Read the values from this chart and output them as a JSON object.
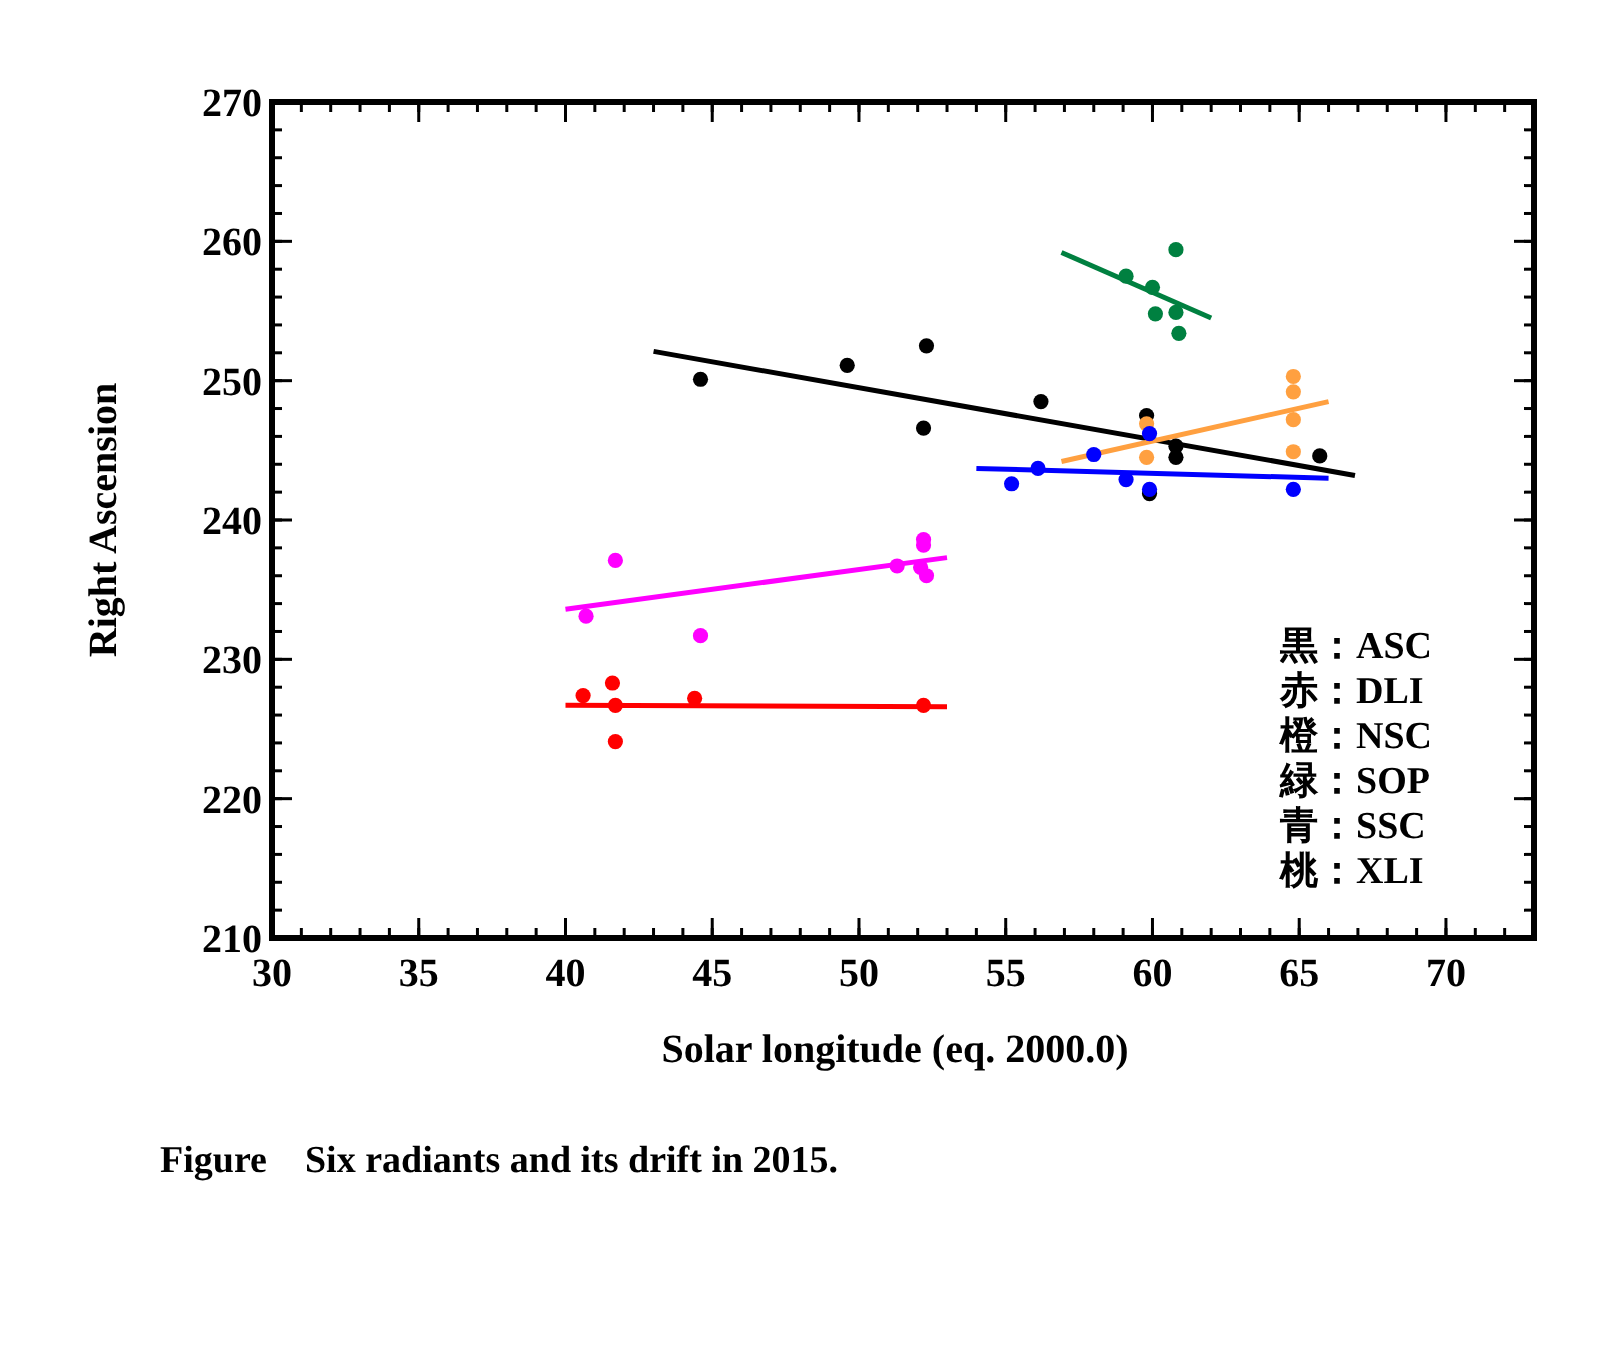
{
  "chart_data": {
    "type": "scatter",
    "title": "Figure    Six radiants and its drift in 2015.",
    "xlabel": "Solar longitude (eq. 2000.0)",
    "ylabel": "Right Ascension",
    "xlim": [
      30,
      73
    ],
    "xticks": [
      30,
      35,
      40,
      45,
      50,
      55,
      60,
      65,
      70
    ],
    "ylim": [
      210,
      270
    ],
    "yticks": [
      210,
      220,
      230,
      240,
      250,
      260,
      270
    ],
    "grid": false,
    "annotations": [
      "黒：ASC",
      "赤：DLI",
      "橙：NSC",
      "緑：SOP",
      "青：SSC",
      "桃：XLI"
    ],
    "series": [
      {
        "marker": "circle",
        "color": "#000000",
        "x": [
          44.6,
          49.6,
          52.3,
          52.2,
          56.2,
          59.8,
          59.9,
          60.8,
          60.8,
          65.7
        ],
        "values": [
          250.1,
          251.1,
          252.5,
          246.6,
          248.5,
          247.5,
          241.9,
          245.3,
          244.5,
          244.6
        ]
      },
      {
        "type": "line",
        "color": "#000000",
        "x": [
          43.0,
          66.9
        ],
        "values": [
          252.1,
          243.2
        ]
      },
      {
        "marker": "circle",
        "color": "#ff0000",
        "x": [
          40.6,
          41.6,
          41.7,
          41.7,
          44.4,
          52.2
        ],
        "values": [
          227.4,
          228.3,
          226.7,
          224.1,
          227.2,
          226.7
        ]
      },
      {
        "type": "line",
        "color": "#ff0000",
        "x": [
          40.0,
          53.0
        ],
        "values": [
          226.7,
          226.6
        ]
      },
      {
        "marker": "circle",
        "color": "#ffa040",
        "x": [
          64.8,
          64.8,
          64.8,
          64.8,
          59.8,
          59.8
        ],
        "values": [
          250.3,
          249.2,
          247.2,
          244.9,
          246.9,
          244.5
        ]
      },
      {
        "type": "line",
        "color": "#ffa040",
        "x": [
          56.9,
          66.0
        ],
        "values": [
          244.2,
          248.5
        ]
      },
      {
        "marker": "circle",
        "color": "#008040",
        "x": [
          60.8,
          59.1,
          60.0,
          60.1,
          60.8,
          60.9
        ],
        "values": [
          259.4,
          257.5,
          256.7,
          254.8,
          254.9,
          253.4
        ]
      },
      {
        "type": "line",
        "color": "#008040",
        "x": [
          56.9,
          62.0
        ],
        "values": [
          259.2,
          254.5
        ]
      },
      {
        "marker": "circle",
        "color": "#0000ff",
        "x": [
          55.2,
          56.1,
          58.0,
          59.1,
          59.9,
          59.9,
          64.8
        ],
        "values": [
          242.6,
          243.7,
          244.7,
          242.9,
          246.2,
          242.2,
          242.2
        ]
      },
      {
        "type": "line",
        "color": "#0000ff",
        "x": [
          54.0,
          66.0
        ],
        "values": [
          243.7,
          243.0
        ]
      },
      {
        "marker": "circle",
        "color": "#ff00ff",
        "x": [
          41.7,
          40.7,
          44.6,
          52.2,
          52.2,
          51.3,
          52.1,
          52.3
        ],
        "values": [
          237.1,
          233.1,
          231.7,
          238.6,
          238.2,
          236.7,
          236.6,
          236.0
        ]
      },
      {
        "type": "line",
        "color": "#ff00ff",
        "x": [
          40.0,
          53.0
        ],
        "values": [
          233.6,
          237.3
        ]
      }
    ]
  }
}
